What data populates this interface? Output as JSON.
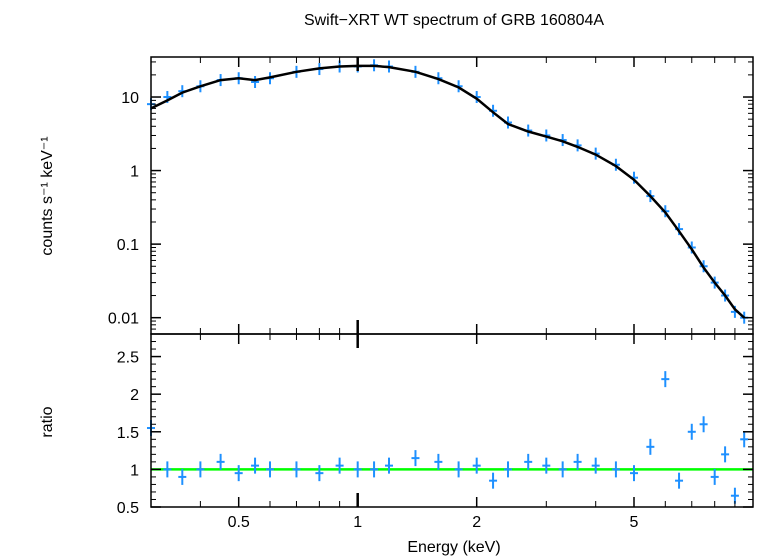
{
  "chart_data": [
    {
      "type": "scatter",
      "title": "Swift−XRT WT spectrum of GRB 160804A",
      "ylabel": "counts s⁻¹ keV⁻¹",
      "xscale": "log",
      "yscale": "log",
      "xlim": [
        0.3,
        10
      ],
      "ylim": [
        0.006,
        35
      ],
      "yticks": [
        {
          "value": 0.01,
          "label": "0.01"
        },
        {
          "value": 0.1,
          "label": "0.1"
        },
        {
          "value": 1,
          "label": "1"
        },
        {
          "value": 10,
          "label": "10"
        }
      ],
      "data_color": "#1e90ff",
      "model_color": "#000000",
      "series": [
        {
          "style": "data",
          "x": [
            0.3,
            0.33,
            0.36,
            0.4,
            0.45,
            0.5,
            0.55,
            0.6,
            0.7,
            0.8,
            0.9,
            1.0,
            1.1,
            1.2,
            1.4,
            1.6,
            1.8,
            2.0,
            2.2,
            2.4,
            2.7,
            3.0,
            3.3,
            3.6,
            4.0,
            4.5,
            5.0,
            5.5,
            6.0,
            6.5,
            7.0,
            7.5,
            8.0,
            8.5,
            9.0,
            9.5
          ],
          "y": [
            8,
            10,
            12,
            14,
            17,
            18,
            16,
            18,
            22,
            24,
            26,
            26,
            27,
            26,
            22,
            18,
            14,
            10,
            6.5,
            4.5,
            3.5,
            3.0,
            2.6,
            2.2,
            1.7,
            1.2,
            0.8,
            0.45,
            0.28,
            0.16,
            0.09,
            0.05,
            0.03,
            0.02,
            0.012,
            0.01
          ]
        },
        {
          "style": "model",
          "x": [
            0.3,
            0.33,
            0.36,
            0.4,
            0.45,
            0.5,
            0.55,
            0.6,
            0.7,
            0.8,
            0.9,
            1.0,
            1.1,
            1.2,
            1.4,
            1.6,
            1.8,
            2.0,
            2.2,
            2.4,
            2.7,
            3.0,
            3.3,
            3.6,
            4.0,
            4.5,
            5.0,
            5.5,
            6.0,
            6.5,
            7.0,
            7.5,
            8.0,
            8.5,
            9.0,
            9.5
          ],
          "y": [
            7,
            9,
            11.5,
            14,
            17,
            18,
            17,
            18.5,
            22,
            24.5,
            26,
            26.5,
            26.5,
            25.5,
            22,
            17.5,
            13.5,
            9.5,
            6.2,
            4.3,
            3.4,
            2.9,
            2.5,
            2.1,
            1.65,
            1.15,
            0.75,
            0.45,
            0.27,
            0.15,
            0.085,
            0.048,
            0.03,
            0.02,
            0.013,
            0.01
          ]
        }
      ]
    },
    {
      "type": "scatter",
      "xlabel": "Energy (keV)",
      "ylabel": "ratio",
      "xscale": "log",
      "xlim": [
        0.3,
        10
      ],
      "ylim": [
        0.5,
        2.8
      ],
      "xticks": [
        {
          "value": 0.5,
          "label": "0.5"
        },
        {
          "value": 1,
          "label": "1"
        },
        {
          "value": 2,
          "label": "2"
        },
        {
          "value": 5,
          "label": "5"
        }
      ],
      "yticks": [
        {
          "value": 0.5,
          "label": "0.5"
        },
        {
          "value": 1,
          "label": "1"
        },
        {
          "value": 1.5,
          "label": "1.5"
        },
        {
          "value": 2,
          "label": "2"
        },
        {
          "value": 2.5,
          "label": "2.5"
        }
      ],
      "reference_line": 1,
      "reference_color": "#00ff00",
      "series": [
        {
          "style": "data",
          "x": [
            0.3,
            0.33,
            0.36,
            0.4,
            0.45,
            0.5,
            0.55,
            0.6,
            0.7,
            0.8,
            0.9,
            1.0,
            1.1,
            1.2,
            1.4,
            1.6,
            1.8,
            2.0,
            2.2,
            2.4,
            2.7,
            3.0,
            3.3,
            3.6,
            4.0,
            4.5,
            5.0,
            5.5,
            6.0,
            6.5,
            7.0,
            7.5,
            8.0,
            8.5,
            9.0,
            9.5
          ],
          "y": [
            1.55,
            1.0,
            0.9,
            1.0,
            1.1,
            0.95,
            1.05,
            1.0,
            1.0,
            0.95,
            1.05,
            1.0,
            1.0,
            1.05,
            1.15,
            1.1,
            1.0,
            1.05,
            0.85,
            1.0,
            1.1,
            1.05,
            1.0,
            1.1,
            1.05,
            1.0,
            0.95,
            1.3,
            2.2,
            0.85,
            1.5,
            1.6,
            0.9,
            1.2,
            0.65,
            1.4
          ]
        }
      ]
    }
  ]
}
